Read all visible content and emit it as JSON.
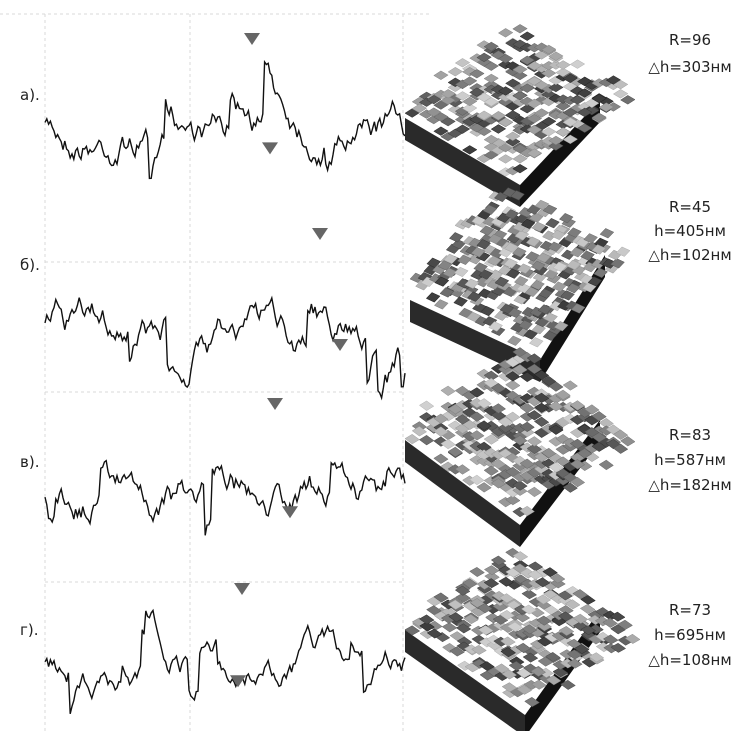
{
  "panels": [
    {
      "label": "а).",
      "params": [
        "R=96",
        "△h=303нм"
      ]
    },
    {
      "label": "б).",
      "params": [
        "R=45",
        "h=405нм",
        "△h=102нм"
      ]
    },
    {
      "label": "в).",
      "params": [
        "R=83",
        "h=587нм",
        "△h=182нм"
      ]
    },
    {
      "label": "г).",
      "params": [
        "R=73",
        "h=695нм",
        "△h=108нм"
      ]
    }
  ]
}
